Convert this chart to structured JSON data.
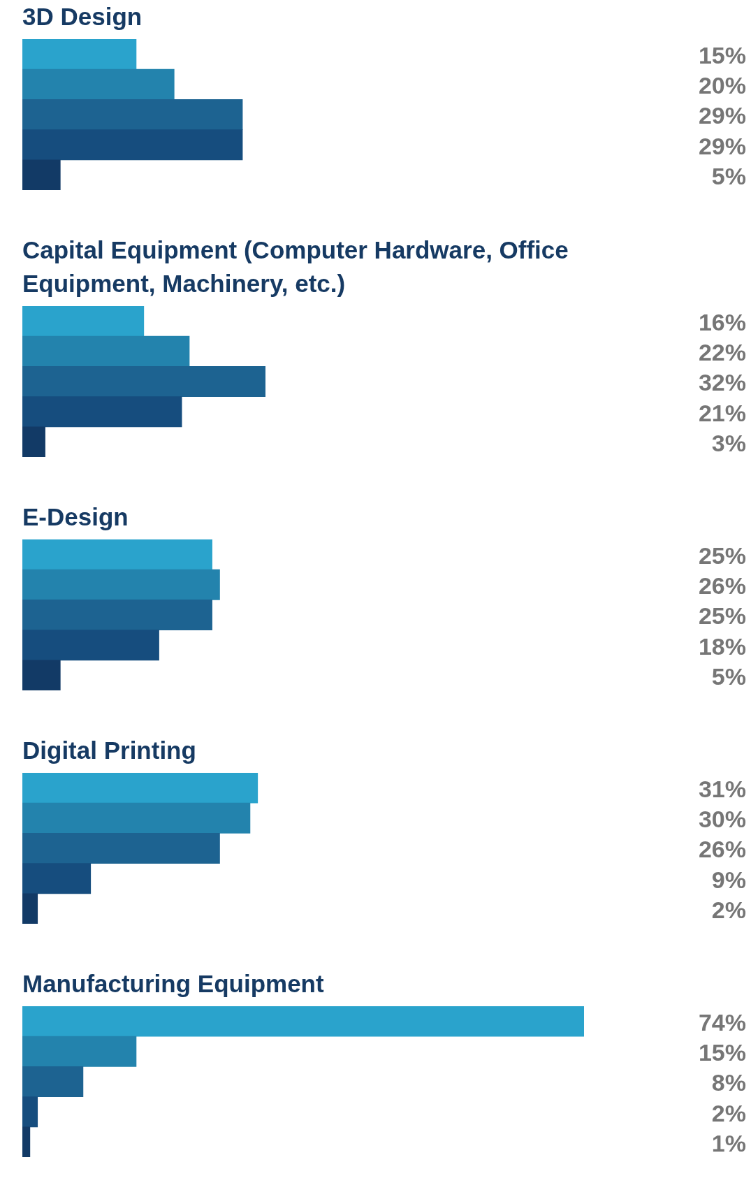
{
  "chart_data": [
    {
      "type": "bar",
      "orientation": "horizontal",
      "title": "3D Design",
      "categories": [
        null,
        null,
        null,
        null,
        null
      ],
      "values": [
        15,
        20,
        29,
        29,
        5
      ],
      "colors": [
        "#2aa3cc",
        "#2383ad",
        "#1d6391",
        "#164d7e",
        "#123a66"
      ],
      "value_labels": [
        "15%",
        "20%",
        "29%",
        "29%",
        "5%"
      ],
      "tick_labels": false
    },
    {
      "type": "bar",
      "orientation": "horizontal",
      "title": "Capital Equipment (Computer Hardware, Office Equipment, Machinery, etc.)",
      "categories": [
        null,
        null,
        null,
        null,
        null
      ],
      "values": [
        16,
        22,
        32,
        21,
        3
      ],
      "colors": [
        "#2aa3cc",
        "#2383ad",
        "#1d6391",
        "#164d7e",
        "#123a66"
      ],
      "value_labels": [
        "16%",
        "22%",
        "32%",
        "21%",
        "3%"
      ],
      "tick_labels": false
    },
    {
      "type": "bar",
      "orientation": "horizontal",
      "title": "E-Design",
      "categories": [
        null,
        null,
        null,
        null,
        null
      ],
      "values": [
        25,
        26,
        25,
        18,
        5
      ],
      "colors": [
        "#2aa3cc",
        "#2383ad",
        "#1d6391",
        "#164d7e",
        "#123a66"
      ],
      "value_labels": [
        "25%",
        "26%",
        "25%",
        "18%",
        "5%"
      ],
      "tick_labels": false
    },
    {
      "type": "bar",
      "orientation": "horizontal",
      "title": "Digital Printing",
      "categories": [
        null,
        null,
        null,
        null,
        null
      ],
      "values": [
        31,
        30,
        26,
        9,
        2
      ],
      "colors": [
        "#2aa3cc",
        "#2383ad",
        "#1d6391",
        "#164d7e",
        "#123a66"
      ],
      "value_labels": [
        "31%",
        "30%",
        "26%",
        "9%",
        "2%"
      ],
      "tick_labels": false
    },
    {
      "type": "bar",
      "orientation": "horizontal",
      "title": "Manufacturing Equipment",
      "categories": [
        null,
        null,
        null,
        null,
        null
      ],
      "values": [
        74,
        15,
        8,
        2,
        1
      ],
      "colors": [
        "#2aa3cc",
        "#2383ad",
        "#1d6391",
        "#164d7e",
        "#123a66"
      ],
      "value_labels": [
        "74%",
        "15%",
        "8%",
        "2%",
        "1%"
      ],
      "tick_labels": false
    }
  ]
}
